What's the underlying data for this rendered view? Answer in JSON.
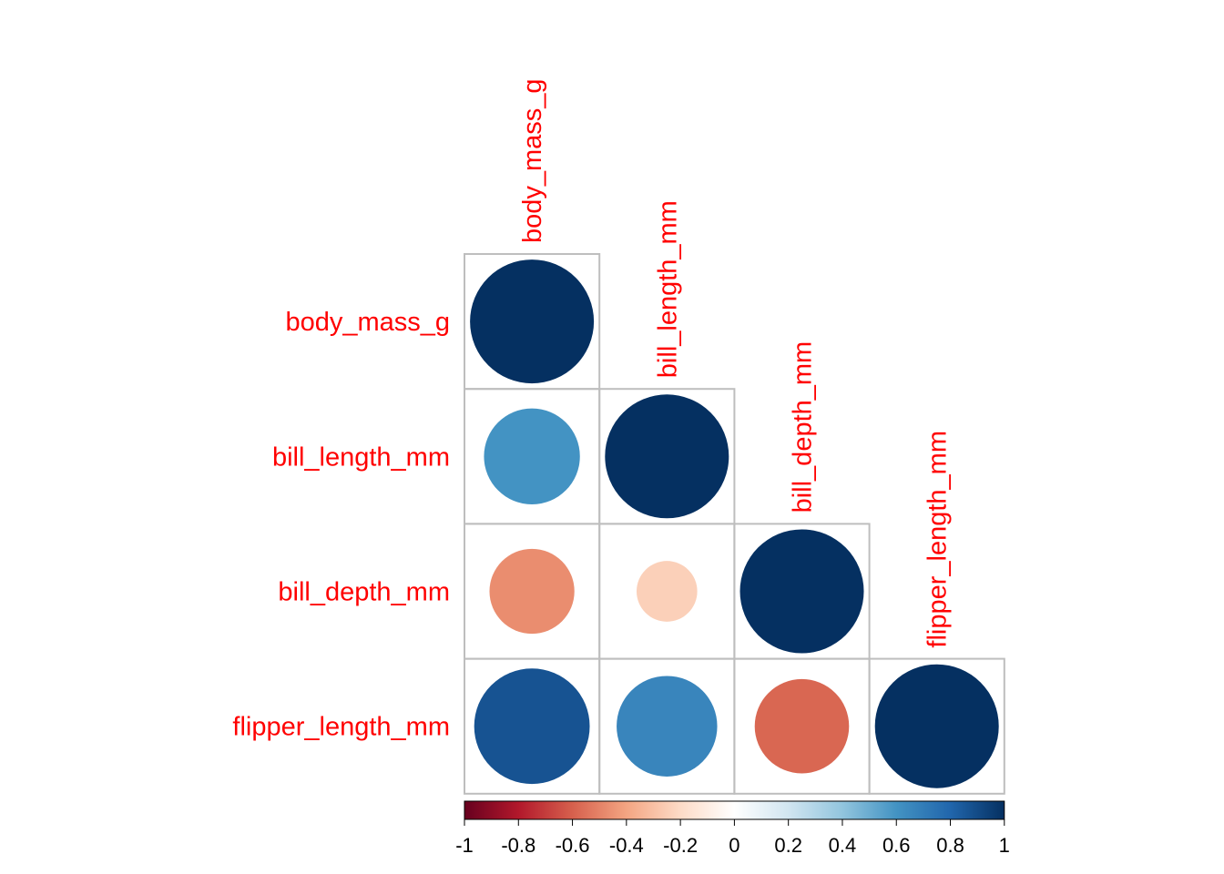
{
  "chart_data": {
    "type": "heatmap",
    "subtype": "correlation-matrix-circle-lower-triangle",
    "title": "",
    "variables": [
      "body_mass_g",
      "bill_length_mm",
      "bill_depth_mm",
      "flipper_length_mm"
    ],
    "matrix": [
      [
        1.0,
        0.6,
        -0.47,
        0.87
      ],
      [
        0.6,
        1.0,
        -0.24,
        0.66
      ],
      [
        -0.47,
        -0.24,
        1.0,
        -0.58
      ],
      [
        0.87,
        0.66,
        -0.58,
        1.0
      ]
    ],
    "colorbar": {
      "min": -1,
      "max": 1,
      "ticks": [
        "-1",
        "-0.8",
        "-0.6",
        "-0.4",
        "-0.2",
        "0",
        "0.2",
        "0.4",
        "0.6",
        "0.8",
        "1"
      ],
      "palette": [
        "#67001F",
        "#B2182B",
        "#D6604D",
        "#F4A582",
        "#FDDBC7",
        "#FFFFFF",
        "#D1E5F0",
        "#92C5DE",
        "#4393C3",
        "#2166AC",
        "#053061"
      ]
    },
    "label_color": "#FF0000",
    "grid_color": "#BEBEBE",
    "legend_placement": "bottom"
  }
}
